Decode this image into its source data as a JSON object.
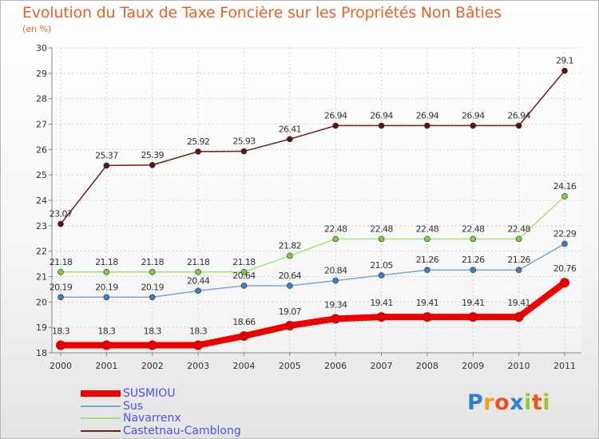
{
  "title": "Evolution du Taux de Taxe Foncière sur les Propriétés Non Bâties",
  "subtitle": "(en %)",
  "logo": {
    "letters": [
      "P",
      "r",
      "o",
      "x",
      "i",
      "t",
      "i"
    ],
    "colors": [
      "#2f7fd0",
      "#f0a020",
      "#e8531f",
      "#2f7fd0",
      "#9cc631",
      "#e8531f",
      "#9cc631"
    ]
  },
  "chart_data": {
    "type": "line",
    "title": "Evolution du Taux de Taxe Foncière sur les Propriétés Non Bâties",
    "ylabel": "(en %)",
    "xlabel": "",
    "categories": [
      "2000",
      "2001",
      "2002",
      "2003",
      "2004",
      "2005",
      "2006",
      "2007",
      "2008",
      "2009",
      "2010",
      "2011"
    ],
    "ylim": [
      18,
      30
    ],
    "yticks": [
      "18",
      "19",
      "20",
      "21",
      "22",
      "23",
      "24",
      "25",
      "26",
      "27",
      "28",
      "29",
      "30"
    ],
    "grid": true,
    "legend_position": "bottom-left",
    "series": [
      {
        "name": "Castetnau-Camblong",
        "color": "#6b1f1f",
        "marker": "#5a1414",
        "values": [
          23.07,
          25.37,
          25.39,
          25.92,
          25.93,
          26.41,
          26.94,
          26.94,
          26.94,
          26.94,
          26.94,
          29.1
        ],
        "labels": [
          "23.07",
          "25.37",
          "25.39",
          "25.92",
          "25.93",
          "26.41",
          "26.94",
          "26.94",
          "26.94",
          "26.94",
          "26.94",
          "29.1"
        ]
      },
      {
        "name": "Navarrenx",
        "color": "#a8dc82",
        "marker": "#7ccc3c",
        "values": [
          21.18,
          21.18,
          21.18,
          21.18,
          21.18,
          21.82,
          22.48,
          22.48,
          22.48,
          22.48,
          22.48,
          24.16
        ],
        "labels": [
          "21.18",
          "21.18",
          "21.18",
          "21.18",
          "21.18",
          "21.82",
          "22.48",
          "22.48",
          "22.48",
          "22.48",
          "22.48",
          "24.16"
        ]
      },
      {
        "name": "Sus",
        "color": "#78a8d0",
        "marker": "#3d7fc0",
        "values": [
          20.19,
          20.19,
          20.19,
          20.44,
          20.64,
          20.64,
          20.84,
          21.05,
          21.26,
          21.26,
          21.26,
          22.29
        ],
        "labels": [
          "20.19",
          "20.19",
          "20.19",
          "20.44",
          "20.64",
          "20.64",
          "20.84",
          "21.05",
          "21.26",
          "21.26",
          "21.26",
          "22.29"
        ]
      },
      {
        "name": "SUSMIOU",
        "color": "#ee0000",
        "marker": "#dd0000",
        "values": [
          18.3,
          18.3,
          18.3,
          18.3,
          18.66,
          19.07,
          19.34,
          19.41,
          19.41,
          19.41,
          19.41,
          20.76
        ],
        "labels": [
          "18.3",
          "18.3",
          "18.3",
          "18.3",
          "18.66",
          "19.07",
          "19.34",
          "19.41",
          "19.41",
          "19.41",
          "19.41",
          "20.76"
        ]
      }
    ],
    "legend": [
      "SUSMIOU",
      "Sus",
      "Navarrenx",
      "Castetnau-Camblong"
    ]
  }
}
